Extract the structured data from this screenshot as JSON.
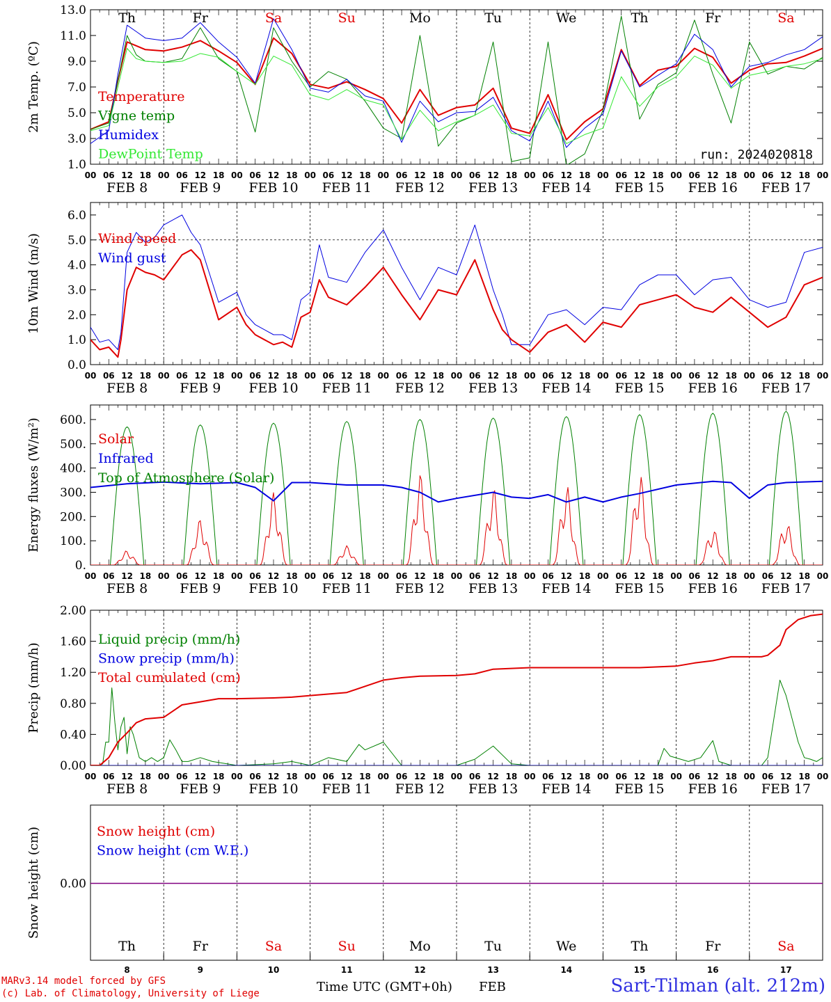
{
  "colors": {
    "red": "#e00000",
    "green": "#008000",
    "blue": "#0000e0",
    "lightgreen": "#33e833",
    "purple": "#800080",
    "weekend": "#e00000",
    "weekday": "#000000"
  },
  "days": [
    {
      "dow": "Th",
      "date": "FEB  8",
      "num": "8",
      "weekend": false
    },
    {
      "dow": "Fr",
      "date": "FEB  9",
      "num": "9",
      "weekend": false
    },
    {
      "dow": "Sa",
      "date": "FEB 10",
      "num": "10",
      "weekend": true
    },
    {
      "dow": "Su",
      "date": "FEB 11",
      "num": "11",
      "weekend": true
    },
    {
      "dow": "Mo",
      "date": "FEB 12",
      "num": "12",
      "weekend": false
    },
    {
      "dow": "Tu",
      "date": "FEB 13",
      "num": "13",
      "weekend": false
    },
    {
      "dow": "We",
      "date": "FEB 14",
      "num": "14",
      "weekend": false
    },
    {
      "dow": "Th",
      "date": "FEB 15",
      "num": "15",
      "weekend": false
    },
    {
      "dow": "Fr",
      "date": "FEB 16",
      "num": "16",
      "weekend": false
    },
    {
      "dow": "Sa",
      "date": "FEB 17",
      "num": "17",
      "weekend": true
    }
  ],
  "hour_ticks": [
    "00",
    "06",
    "12",
    "18"
  ],
  "final_hour_tick": "00",
  "footer": {
    "credit_line1": "MARv3.14 model forced by GFS",
    "credit_line2": "(c) Lab. of Climatology, University of Liege",
    "axis_title": "Time UTC (GMT+0h)",
    "month": "FEB",
    "station": "Sart-Tilman (alt. 212m)"
  },
  "chart_data": [
    {
      "type": "line",
      "ylabel": "2m Temp. (ºC)",
      "ylim": [
        1.0,
        13.0
      ],
      "yticks": [
        "1.0",
        "3.0",
        "5.0",
        "7.0",
        "9.0",
        "11.0",
        "13.0"
      ],
      "annotation": "run: 2024020818",
      "x_unit": "hours since FEB 8 00 UTC",
      "series": [
        {
          "name": "Temperature",
          "color": "red",
          "width": 2,
          "x": [
            0,
            6,
            9,
            12,
            15,
            18,
            24,
            30,
            36,
            42,
            48,
            54,
            60,
            66,
            72,
            78,
            84,
            90,
            96,
            102,
            108,
            114,
            120,
            126,
            132,
            138,
            144,
            150,
            156,
            162,
            168,
            174,
            180,
            186,
            192,
            198,
            204,
            210,
            216,
            222,
            228,
            234,
            240
          ],
          "y": [
            3.7,
            4.3,
            7.5,
            10.5,
            10.2,
            9.9,
            9.8,
            10.1,
            10.6,
            9.8,
            8.9,
            7.2,
            10.8,
            9.6,
            7.2,
            6.9,
            7.4,
            6.8,
            6.1,
            4.2,
            6.8,
            4.8,
            5.4,
            5.6,
            6.9,
            3.8,
            3.4,
            6.4,
            2.9,
            4.3,
            5.3,
            9.9,
            7.1,
            8.3,
            8.6,
            10.0,
            9.3,
            7.3,
            8.3,
            8.8,
            8.9,
            9.4,
            10.0
          ]
        },
        {
          "name": "Vigne temp",
          "color": "green",
          "width": 1,
          "x": [
            0,
            6,
            9,
            12,
            15,
            18,
            24,
            30,
            36,
            42,
            48,
            54,
            60,
            66,
            72,
            78,
            84,
            90,
            96,
            102,
            108,
            114,
            120,
            126,
            132,
            138,
            144,
            150,
            156,
            162,
            168,
            174,
            180,
            186,
            192,
            198,
            204,
            210,
            216,
            222,
            228,
            234,
            240
          ],
          "y": [
            3.7,
            4.2,
            7.5,
            11.0,
            9.5,
            9.0,
            8.9,
            9.2,
            11.6,
            9.2,
            8.2,
            3.5,
            11.6,
            9.0,
            7.0,
            8.2,
            7.6,
            5.9,
            3.8,
            3.0,
            11.0,
            2.4,
            4.2,
            4.8,
            10.5,
            1.2,
            1.5,
            10.5,
            0.9,
            1.8,
            5.2,
            12.5,
            4.5,
            7.2,
            8.1,
            12.2,
            8.0,
            4.2,
            10.5,
            8.0,
            8.6,
            8.4,
            9.3
          ]
        },
        {
          "name": "Humidex",
          "color": "blue",
          "width": 1,
          "x": [
            0,
            6,
            9,
            12,
            15,
            18,
            24,
            30,
            36,
            42,
            48,
            54,
            60,
            66,
            72,
            78,
            84,
            90,
            96,
            102,
            108,
            114,
            120,
            126,
            132,
            138,
            144,
            150,
            156,
            162,
            168,
            174,
            180,
            186,
            192,
            198,
            204,
            210,
            216,
            222,
            228,
            234,
            240
          ],
          "y": [
            2.6,
            3.6,
            8.0,
            11.8,
            11.3,
            10.8,
            10.6,
            10.8,
            12.0,
            10.5,
            9.3,
            7.3,
            12.3,
            9.9,
            6.9,
            6.6,
            7.6,
            6.3,
            5.9,
            2.7,
            5.9,
            4.3,
            5.0,
            5.1,
            6.2,
            3.6,
            2.8,
            5.9,
            2.3,
            3.8,
            4.9,
            9.8,
            7.0,
            7.9,
            8.8,
            11.1,
            9.9,
            7.0,
            8.6,
            8.9,
            9.5,
            9.9,
            10.9
          ]
        },
        {
          "name": "DewPoint Temp",
          "color": "lightgreen",
          "width": 1,
          "x": [
            0,
            6,
            9,
            12,
            15,
            18,
            24,
            30,
            36,
            42,
            48,
            54,
            60,
            66,
            72,
            78,
            84,
            90,
            96,
            102,
            108,
            114,
            120,
            126,
            132,
            138,
            144,
            150,
            156,
            162,
            168,
            174,
            180,
            186,
            192,
            198,
            204,
            210,
            216,
            222,
            228,
            234,
            240
          ],
          "y": [
            3.6,
            4.0,
            7.0,
            10.0,
            9.2,
            9.0,
            8.9,
            9.0,
            9.6,
            9.3,
            8.2,
            7.2,
            9.4,
            8.7,
            6.4,
            6.0,
            6.8,
            6.0,
            5.6,
            2.9,
            5.2,
            3.6,
            4.3,
            4.8,
            5.6,
            3.4,
            3.2,
            5.4,
            2.6,
            3.3,
            3.8,
            7.8,
            5.5,
            7.0,
            7.8,
            9.4,
            8.7,
            6.9,
            7.9,
            8.2,
            8.6,
            8.8,
            9.2
          ]
        }
      ]
    },
    {
      "type": "line",
      "ylabel": "10m Wind (m/s)",
      "ylim": [
        0.0,
        6.5
      ],
      "yticks": [
        "0.0",
        "1.0",
        "2.0",
        "3.0",
        "4.0",
        "5.0",
        "6.0"
      ],
      "reference_line": 5.0,
      "series": [
        {
          "name": "Wind speed",
          "color": "red",
          "width": 2,
          "x": [
            0,
            3,
            6,
            9,
            10,
            12,
            15,
            18,
            21,
            24,
            30,
            33,
            36,
            42,
            48,
            51,
            54,
            60,
            63,
            66,
            69,
            72,
            75,
            78,
            84,
            90,
            96,
            102,
            108,
            114,
            120,
            126,
            132,
            135,
            138,
            144,
            150,
            156,
            162,
            168,
            174,
            180,
            186,
            192,
            198,
            204,
            210,
            216,
            222,
            228,
            234,
            240
          ],
          "y": [
            1.0,
            0.6,
            0.7,
            0.3,
            1.0,
            3.0,
            3.9,
            3.7,
            3.6,
            3.4,
            4.4,
            4.6,
            4.2,
            1.8,
            2.3,
            1.6,
            1.2,
            0.8,
            0.9,
            0.7,
            1.9,
            2.1,
            3.4,
            2.7,
            2.4,
            3.1,
            3.9,
            2.8,
            1.8,
            3.0,
            2.8,
            4.2,
            2.2,
            1.4,
            1.0,
            0.5,
            1.3,
            1.6,
            0.9,
            1.7,
            1.5,
            2.4,
            2.6,
            2.8,
            2.3,
            2.1,
            2.7,
            2.1,
            1.5,
            1.9,
            3.2,
            3.5
          ]
        },
        {
          "name": "Wind gust",
          "color": "blue",
          "width": 1,
          "x": [
            0,
            3,
            6,
            9,
            10,
            12,
            15,
            18,
            21,
            24,
            30,
            33,
            36,
            42,
            48,
            51,
            54,
            60,
            63,
            66,
            69,
            72,
            75,
            78,
            84,
            90,
            96,
            102,
            108,
            114,
            120,
            126,
            132,
            135,
            138,
            144,
            150,
            156,
            162,
            168,
            174,
            180,
            186,
            192,
            198,
            204,
            210,
            216,
            222,
            228,
            234,
            240
          ],
          "y": [
            1.5,
            0.9,
            1.0,
            0.6,
            1.3,
            4.5,
            5.3,
            4.9,
            5.1,
            5.6,
            6.0,
            5.3,
            4.8,
            2.5,
            2.9,
            2.0,
            1.6,
            1.2,
            1.2,
            1.0,
            2.6,
            2.9,
            4.8,
            3.5,
            3.3,
            4.5,
            5.4,
            3.9,
            2.6,
            3.9,
            3.6,
            5.6,
            3.0,
            2.0,
            0.8,
            0.8,
            2.0,
            2.2,
            1.6,
            2.3,
            2.2,
            3.2,
            3.6,
            3.6,
            2.8,
            3.4,
            3.5,
            2.6,
            2.3,
            2.5,
            4.5,
            4.7
          ]
        }
      ]
    },
    {
      "type": "line",
      "ylabel": "Energy fluxes (W/m²)",
      "ylim": [
        0,
        660
      ],
      "yticks": [
        "0.",
        "100.",
        "200.",
        "300.",
        "400.",
        "500.",
        "600."
      ],
      "series": [
        {
          "name": "Solar",
          "color": "red",
          "width": 1,
          "peak_hour": 12,
          "daily_peaks": [
            60,
            190,
            300,
            80,
            380,
            320,
            330,
            380,
            150,
            180
          ]
        },
        {
          "name": "Infrared",
          "color": "blue",
          "width": 2,
          "x": [
            0,
            12,
            24,
            36,
            48,
            54,
            60,
            66,
            72,
            84,
            96,
            102,
            108,
            114,
            120,
            132,
            138,
            144,
            150,
            156,
            162,
            168,
            174,
            180,
            192,
            204,
            210,
            216,
            222,
            228,
            240
          ],
          "y": [
            320,
            335,
            342,
            335,
            340,
            320,
            265,
            340,
            340,
            330,
            330,
            320,
            300,
            260,
            275,
            300,
            280,
            275,
            290,
            260,
            280,
            260,
            280,
            295,
            330,
            345,
            340,
            275,
            330,
            340,
            345
          ]
        },
        {
          "name": "Top of Atmosphere (Solar)",
          "color": "green",
          "width": 1,
          "peak_hour": 12,
          "daily_peaks": [
            570,
            578,
            585,
            592,
            600,
            606,
            612,
            620,
            626,
            634
          ]
        }
      ]
    },
    {
      "type": "line",
      "ylabel": "Precip (mm/h)",
      "ylim": [
        0.0,
        2.0
      ],
      "yticks": [
        "0.00",
        "0.40",
        "0.80",
        "1.20",
        "1.60",
        "2.00"
      ],
      "series": [
        {
          "name": "Liquid precip (mm/h)",
          "color": "green",
          "width": 1,
          "x": [
            0,
            3,
            4,
            5,
            6,
            7,
            8,
            9,
            10,
            11,
            12,
            13,
            14,
            15,
            16,
            18,
            20,
            22,
            24,
            26,
            28,
            30,
            32,
            36,
            40,
            48,
            60,
            66,
            72,
            78,
            84,
            88,
            90,
            96,
            102,
            108,
            114,
            120,
            126,
            132,
            138,
            144,
            150,
            156,
            162,
            168,
            186,
            188,
            190,
            196,
            200,
            204,
            206,
            210,
            216,
            220,
            222,
            224,
            226,
            228,
            232,
            234,
            236,
            238,
            240
          ],
          "y": [
            0,
            0,
            0.02,
            0.3,
            0.3,
            1.0,
            0.55,
            0.2,
            0.5,
            0.62,
            0.15,
            0.5,
            0.4,
            0.25,
            0.1,
            0.05,
            0.1,
            0.05,
            0.1,
            0.33,
            0.2,
            0.05,
            0.05,
            0.1,
            0.05,
            0,
            0.02,
            0.05,
            0,
            0.1,
            0.05,
            0.27,
            0.2,
            0.3,
            0,
            0,
            0,
            0,
            0.08,
            0.25,
            0.02,
            0,
            0,
            0,
            0,
            0,
            0,
            0.22,
            0.12,
            0.05,
            0.1,
            0.32,
            0.05,
            0,
            0,
            0,
            0.1,
            0.6,
            1.1,
            0.9,
            0.3,
            0.1,
            0.08,
            0.05,
            0.1
          ]
        },
        {
          "name": "Snow precip (mm/h)",
          "color": "blue",
          "width": 1,
          "x": [
            0,
            240
          ],
          "y": [
            0,
            0
          ]
        },
        {
          "name": "Total cumulated (cm)",
          "color": "red",
          "width": 2,
          "x": [
            0,
            3,
            6,
            9,
            12,
            15,
            18,
            24,
            30,
            36,
            42,
            48,
            60,
            66,
            72,
            84,
            96,
            102,
            108,
            120,
            126,
            132,
            144,
            156,
            168,
            180,
            192,
            198,
            204,
            210,
            216,
            220,
            222,
            226,
            228,
            232,
            236,
            240
          ],
          "y": [
            0,
            0,
            0.1,
            0.3,
            0.42,
            0.55,
            0.6,
            0.62,
            0.78,
            0.82,
            0.86,
            0.86,
            0.87,
            0.88,
            0.9,
            0.94,
            1.1,
            1.13,
            1.15,
            1.16,
            1.18,
            1.24,
            1.26,
            1.26,
            1.26,
            1.26,
            1.28,
            1.32,
            1.35,
            1.4,
            1.4,
            1.4,
            1.42,
            1.55,
            1.75,
            1.88,
            1.93,
            1.95
          ]
        }
      ]
    },
    {
      "type": "line",
      "ylabel": "Snow height (cm)",
      "ytick_center": "0.00",
      "series": [
        {
          "name": "Snow height (cm)",
          "color": "red",
          "width": 1,
          "x": [
            0,
            240
          ],
          "y": [
            0,
            0
          ]
        },
        {
          "name": "Snow height (cm W.E.)",
          "color": "blue",
          "width": 1,
          "x": [
            0,
            240
          ],
          "y": [
            0,
            0
          ]
        }
      ]
    }
  ]
}
